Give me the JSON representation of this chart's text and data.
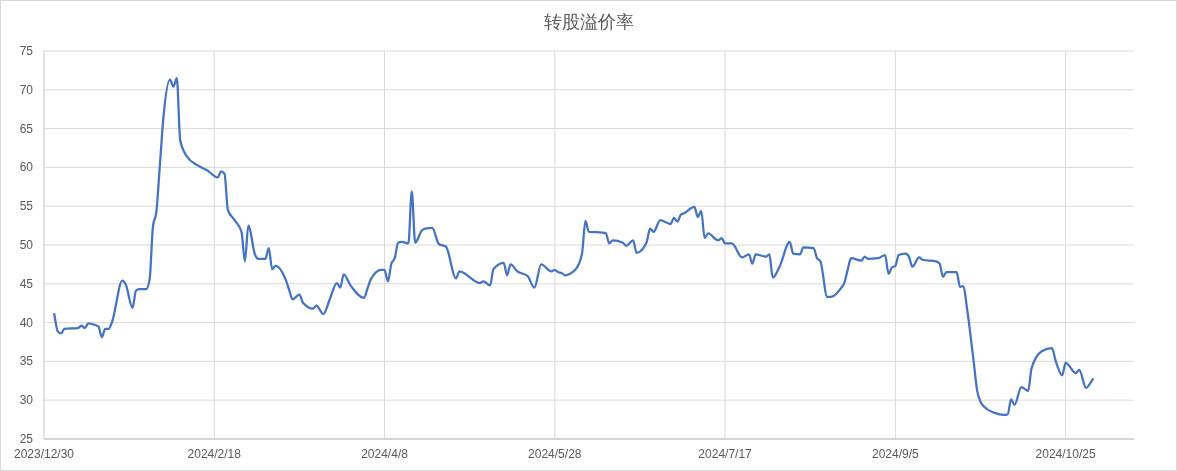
{
  "chart_data": {
    "type": "line",
    "title": "转股溢价率",
    "x": [
      "2024-01-02",
      "2024-01-03",
      "2024-01-04",
      "2024-01-05",
      "2024-01-09",
      "2024-01-10",
      "2024-01-11",
      "2024-01-12",
      "2024-01-14",
      "2024-01-15",
      "2024-01-16",
      "2024-01-17",
      "2024-01-18",
      "2024-01-19",
      "2024-01-22",
      "2024-01-23",
      "2024-01-25",
      "2024-01-26",
      "2024-01-27",
      "2024-01-29",
      "2024-01-30",
      "2024-01-31",
      "2024-02-01",
      "2024-02-02",
      "2024-02-03",
      "2024-02-05",
      "2024-02-06",
      "2024-02-07",
      "2024-02-08",
      "2024-02-10",
      "2024-02-13",
      "2024-02-16",
      "2024-02-19",
      "2024-02-20",
      "2024-02-21",
      "2024-02-22",
      "2024-02-24",
      "2024-02-26",
      "2024-02-27",
      "2024-02-28",
      "2024-03-01",
      "2024-03-02",
      "2024-03-04",
      "2024-03-05",
      "2024-03-06",
      "2024-03-07",
      "2024-03-10",
      "2024-03-11",
      "2024-03-12",
      "2024-03-14",
      "2024-03-15",
      "2024-03-18",
      "2024-03-19",
      "2024-03-21",
      "2024-03-23",
      "2024-03-25",
      "2024-03-26",
      "2024-03-27",
      "2024-03-29",
      "2024-04-02",
      "2024-04-03",
      "2024-04-04",
      "2024-04-07",
      "2024-04-08",
      "2024-04-09",
      "2024-04-10",
      "2024-04-11",
      "2024-04-12",
      "2024-04-13",
      "2024-04-15",
      "2024-04-16",
      "2024-04-17",
      "2024-04-19",
      "2024-04-20",
      "2024-04-22",
      "2024-04-24",
      "2024-04-26",
      "2024-04-29",
      "2024-04-30",
      "2024-05-06",
      "2024-05-07",
      "2024-05-09",
      "2024-05-10",
      "2024-05-13",
      "2024-05-14",
      "2024-05-15",
      "2024-05-17",
      "2024-05-20",
      "2024-05-22",
      "2024-05-24",
      "2024-05-27",
      "2024-05-28",
      "2024-05-29",
      "2024-05-30",
      "2024-05-31",
      "2024-06-03",
      "2024-06-05",
      "2024-06-06",
      "2024-06-07",
      "2024-06-11",
      "2024-06-12",
      "2024-06-13",
      "2024-06-14",
      "2024-06-17",
      "2024-06-18",
      "2024-06-20",
      "2024-06-21",
      "2024-06-23",
      "2024-06-24",
      "2024-06-25",
      "2024-06-26",
      "2024-06-28",
      "2024-07-01",
      "2024-07-02",
      "2024-07-03",
      "2024-07-04",
      "2024-07-05",
      "2024-07-08",
      "2024-07-09",
      "2024-07-10",
      "2024-07-11",
      "2024-07-12",
      "2024-07-15",
      "2024-07-16",
      "2024-07-17",
      "2024-07-19",
      "2024-07-22",
      "2024-07-24",
      "2024-07-25",
      "2024-07-26",
      "2024-07-29",
      "2024-07-30",
      "2024-07-31",
      "2024-08-02",
      "2024-08-05",
      "2024-08-06",
      "2024-08-08",
      "2024-08-09",
      "2024-08-12",
      "2024-08-13",
      "2024-08-14",
      "2024-08-16",
      "2024-08-17",
      "2024-08-20",
      "2024-08-21",
      "2024-08-22",
      "2024-08-23",
      "2024-08-26",
      "2024-08-27",
      "2024-08-28",
      "2024-08-31",
      "2024-09-02",
      "2024-09-03",
      "2024-09-04",
      "2024-09-05",
      "2024-09-06",
      "2024-09-08",
      "2024-09-09",
      "2024-09-10",
      "2024-09-12",
      "2024-09-13",
      "2024-09-17",
      "2024-09-18",
      "2024-09-19",
      "2024-09-20",
      "2024-09-23",
      "2024-09-24",
      "2024-09-25",
      "2024-09-26",
      "2024-09-28",
      "2024-09-29",
      "2024-09-30",
      "2024-10-01",
      "2024-10-04",
      "2024-10-07",
      "2024-10-08",
      "2024-10-09",
      "2024-10-10",
      "2024-10-12",
      "2024-10-14",
      "2024-10-15",
      "2024-10-18",
      "2024-10-21",
      "2024-10-22",
      "2024-10-24",
      "2024-10-25",
      "2024-10-28",
      "2024-10-29",
      "2024-10-31",
      "2024-11-02"
    ],
    "values": [
      41.1,
      38.9,
      38.6,
      39.2,
      39.3,
      39.6,
      39.3,
      39.9,
      39.7,
      39.5,
      38.1,
      39.2,
      39.2,
      40.1,
      45.4,
      44.9,
      41.9,
      44.1,
      44.3,
      44.3,
      45.5,
      52.4,
      54.3,
      60.1,
      66.1,
      71.3,
      70.4,
      71.5,
      63.5,
      61.4,
      60.3,
      59.6,
      58.7,
      59.5,
      59.2,
      54.5,
      53.2,
      51.7,
      47.9,
      52.5,
      48.7,
      48.2,
      48.2,
      49.6,
      46.9,
      47.3,
      45.5,
      44.2,
      43.0,
      43.6,
      42.6,
      41.8,
      42.2,
      41.1,
      43.1,
      45.1,
      44.5,
      46.2,
      44.8,
      43.2,
      44.4,
      45.6,
      46.8,
      46.8,
      45.3,
      47.6,
      48.3,
      50.3,
      50.4,
      50.2,
      56.9,
      50.3,
      51.9,
      52.1,
      52.2,
      50.1,
      49.8,
      45.7,
      46.6,
      45.1,
      45.3,
      44.8,
      46.9,
      47.7,
      46.1,
      47.5,
      46.6,
      46.0,
      44.5,
      47.5,
      46.6,
      46.8,
      46.5,
      46.4,
      46.1,
      46.8,
      48.9,
      53.1,
      51.7,
      51.6,
      51.5,
      50.2,
      50.6,
      50.3,
      49.9,
      50.6,
      49.0,
      49.6,
      50.4,
      52.1,
      51.7,
      53.2,
      52.7,
      53.5,
      53.0,
      53.9,
      54.1,
      54.9,
      53.6,
      54.4,
      50.9,
      51.5,
      50.6,
      50.9,
      50.2,
      50.2,
      48.4,
      48.8,
      47.6,
      48.8,
      48.5,
      48.8,
      45.8,
      47.2,
      50.4,
      48.9,
      48.8,
      49.7,
      49.6,
      48.3,
      47.9,
      43.3,
      43.3,
      44.4,
      45.1,
      46.8,
      48.3,
      48.0,
      48.5,
      48.2,
      48.3,
      48.7,
      46.3,
      47.1,
      47.3,
      48.7,
      48.9,
      48.5,
      47.2,
      48.4,
      48.1,
      47.9,
      47.6,
      45.9,
      46.5,
      46.5,
      44.6,
      44.7,
      42.0,
      35.0,
      31.3,
      29.8,
      29.2,
      28.4,
      28.1,
      28.2,
      30.1,
      29.4,
      31.7,
      31.2,
      34.1,
      36.3,
      36.7,
      35.2,
      33.2,
      34.8,
      33.5,
      33.9,
      31.6,
      32.7
    ],
    "color": "#4472c4",
    "line_style": "solid",
    "grid": true,
    "xlim": [
      "2023-12-30",
      "2024-11-14"
    ],
    "xticks": [
      {
        "value": "2023-12-30",
        "label": "2023/12/30"
      },
      {
        "value": "2024-02-18",
        "label": "2024/2/18"
      },
      {
        "value": "2024-04-08",
        "label": "2024/4/8"
      },
      {
        "value": "2024-05-28",
        "label": "2024/5/28"
      },
      {
        "value": "2024-07-17",
        "label": "2024/7/17"
      },
      {
        "value": "2024-09-05",
        "label": "2024/9/5"
      },
      {
        "value": "2024-10-25",
        "label": "2024/10/25"
      }
    ],
    "ylim": [
      25,
      75
    ],
    "yticks": [
      25,
      30,
      35,
      40,
      45,
      50,
      55,
      60,
      65,
      70,
      75
    ]
  }
}
